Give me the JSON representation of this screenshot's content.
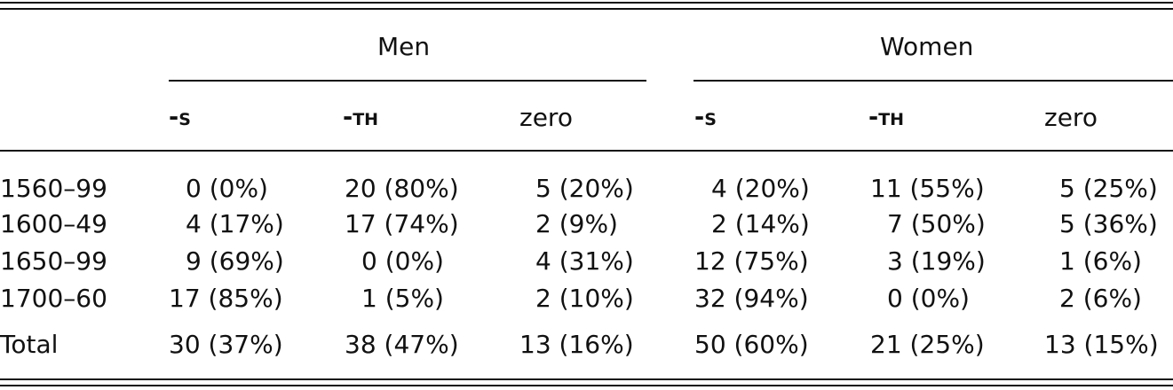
{
  "table": {
    "group_headers": [
      "Men",
      "Women"
    ],
    "column_headers": [
      "-s",
      "-th",
      "zero",
      "-s",
      "-th",
      "zero"
    ],
    "rows": [
      {
        "label": "1560–99",
        "cells": [
          "0 (0%)",
          "20 (80%)",
          "5 (20%)",
          "4 (20%)",
          "11 (55%)",
          "5 (25%)"
        ]
      },
      {
        "label": "1600–49",
        "cells": [
          "4 (17%)",
          "17 (74%)",
          "2 (9%)",
          "2 (14%)",
          "7 (50%)",
          "5 (36%)"
        ]
      },
      {
        "label": "1650–99",
        "cells": [
          "9 (69%)",
          "0 (0%)",
          "4 (31%)",
          "12 (75%)",
          "3 (19%)",
          "1 (6%)"
        ]
      },
      {
        "label": "1700–60",
        "cells": [
          "17 (85%)",
          "1 (5%)",
          "2 (10%)",
          "32 (94%)",
          "0 (0%)",
          "2 (6%)"
        ]
      }
    ],
    "total": {
      "label": "Total",
      "cells": [
        "30 (37%)",
        "38 (47%)",
        "13 (16%)",
        "50 (60%)",
        "21 (25%)",
        "13 (15%)"
      ]
    }
  }
}
